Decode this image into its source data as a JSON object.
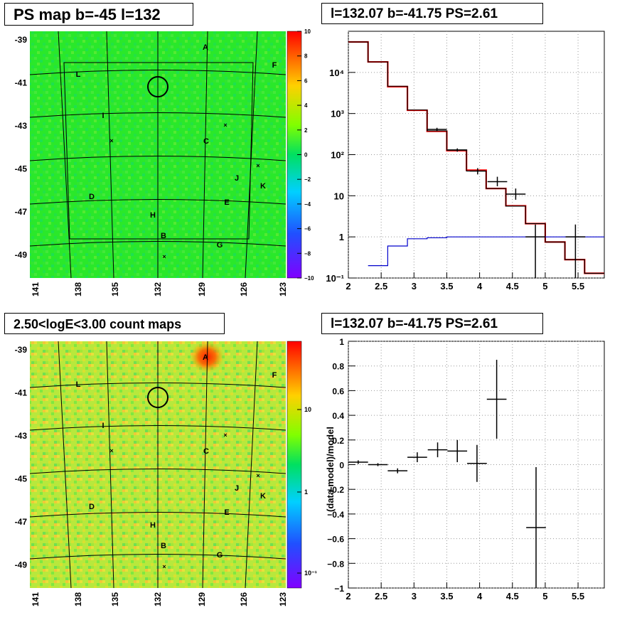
{
  "panels": {
    "tl_title": "PS map b=-45 l=132",
    "tr_title": "l=132.07 b=-41.75 PS=2.61",
    "bl_title": "2.50<logE<3.00 count maps",
    "br_title": "l=132.07 b=-41.75 PS=2.61"
  },
  "maps": {
    "x_ticks": [
      "141",
      "138",
      "135",
      "132",
      "129",
      "126",
      "123"
    ],
    "y_ticks": [
      "-39",
      "-41",
      "-43",
      "-45",
      "-47",
      "-49"
    ],
    "sources": [
      "A",
      "F",
      "L",
      "I",
      "C",
      "J",
      "K",
      "D",
      "E",
      "H",
      "B",
      "G"
    ],
    "ps_colorbar_ticks": [
      "10",
      "8",
      "6",
      "4",
      "2",
      "0",
      "−2",
      "−4",
      "−6",
      "−8",
      "−10"
    ],
    "count_colorbar_ticks": [
      "10",
      "1",
      "10⁻¹"
    ],
    "colors": {
      "ps_bg": "#22e622",
      "count_bg": "#b8e83c",
      "count_hot": "#ff3000"
    }
  },
  "chart_data": [
    {
      "type": "line",
      "panel": "spectrum",
      "title": "l=132.07 b=-41.75 PS=2.61",
      "log_y": true,
      "xlim": [
        2,
        5.9
      ],
      "ylim": [
        0.1,
        100000
      ],
      "x_ticks": [
        "2",
        "2.5",
        "3",
        "3.5",
        "4",
        "4.5",
        "5",
        "5.5"
      ],
      "y_ticks": [
        "10⁻¹",
        "1",
        "10",
        "10²",
        "10³",
        "10⁴"
      ],
      "series": [
        {
          "color": "#ff0000",
          "style": "step",
          "edges": [
            2,
            2.3,
            2.6,
            2.9,
            3.2,
            3.5,
            3.8,
            4.1,
            4.4,
            4.7,
            5.0,
            5.3,
            5.6,
            5.9
          ],
          "values": [
            55000,
            18000,
            4500,
            1200,
            370,
            125,
            42,
            15,
            5.7,
            2.1,
            0.75,
            0.28,
            0.13
          ]
        },
        {
          "color": "#000000",
          "style": "step",
          "edges": [
            2,
            2.3,
            2.6,
            2.9,
            3.2,
            3.5,
            3.8,
            4.1,
            4.4,
            4.7,
            5.0,
            5.3,
            5.6,
            5.9
          ],
          "values": [
            55000,
            18000,
            4600,
            1220,
            380,
            128,
            40,
            15,
            5.6,
            2.1,
            0.75,
            0.28,
            0.13
          ]
        },
        {
          "color": "#0000cc",
          "style": "step",
          "edges": [
            2.3,
            2.6,
            2.9,
            3.2,
            3.5,
            3.8,
            4.1,
            4.4,
            4.7,
            5.0,
            5.3,
            5.6,
            5.9
          ],
          "values": [
            0.2,
            0.6,
            0.9,
            0.95,
            1.0,
            1.0,
            1.0,
            1.0,
            1.0,
            1.0,
            1.0,
            1.0
          ]
        },
        {
          "color": "#000000",
          "style": "errorbar",
          "points": [
            {
              "x": 3.35,
              "y": 410,
              "xerr": 0.15,
              "ylo": 370,
              "yhi": 450
            },
            {
              "x": 3.66,
              "y": 130,
              "xerr": 0.15,
              "ylo": 118,
              "yhi": 142
            },
            {
              "x": 3.97,
              "y": 40,
              "xerr": 0.12,
              "ylo": 33,
              "yhi": 47
            },
            {
              "x": 4.27,
              "y": 22,
              "xerr": 0.15,
              "ylo": 17,
              "yhi": 29
            },
            {
              "x": 4.55,
              "y": 11,
              "xerr": 0.15,
              "ylo": 8,
              "yhi": 15
            },
            {
              "x": 4.85,
              "y": 1.0,
              "xerr": 0.15,
              "ylo": 0.1,
              "yhi": 2.0
            },
            {
              "x": 5.46,
              "y": 1.0,
              "xerr": 0.15,
              "ylo": 0.1,
              "yhi": 2.0
            }
          ]
        }
      ]
    },
    {
      "type": "scatter",
      "panel": "residual",
      "title": "l=132.07 b=-41.75 PS=2.61",
      "ylabel": "(data-model)/model",
      "xlim": [
        2,
        5.9
      ],
      "ylim": [
        -1,
        1
      ],
      "grid": true,
      "x_ticks": [
        "2",
        "2.5",
        "3",
        "3.5",
        "4",
        "4.5",
        "5",
        "5.5"
      ],
      "y_ticks": [
        "1",
        "0.8",
        "0.6",
        "0.4",
        "0.2",
        "0",
        "−0.2",
        "−0.4",
        "−0.6",
        "−0.8",
        "−1"
      ],
      "points": [
        {
          "x": 2.15,
          "y": 0.02,
          "xerr": 0.15,
          "yerr": 0.015
        },
        {
          "x": 2.45,
          "y": 0.0,
          "xerr": 0.15,
          "yerr": 0.012
        },
        {
          "x": 2.75,
          "y": -0.05,
          "xerr": 0.15,
          "yerr": 0.02
        },
        {
          "x": 3.05,
          "y": 0.06,
          "xerr": 0.15,
          "yerr": 0.04
        },
        {
          "x": 3.36,
          "y": 0.12,
          "xerr": 0.15,
          "yerr": 0.06
        },
        {
          "x": 3.66,
          "y": 0.11,
          "xerr": 0.15,
          "yerr": 0.09
        },
        {
          "x": 3.96,
          "y": 0.01,
          "xerr": 0.15,
          "yerr": 0.15
        },
        {
          "x": 4.26,
          "y": 0.53,
          "xerr": 0.15,
          "yerr": 0.32
        },
        {
          "x": 4.86,
          "y": -0.51,
          "xerr": 0.15,
          "yerr": 0.49
        }
      ]
    }
  ]
}
